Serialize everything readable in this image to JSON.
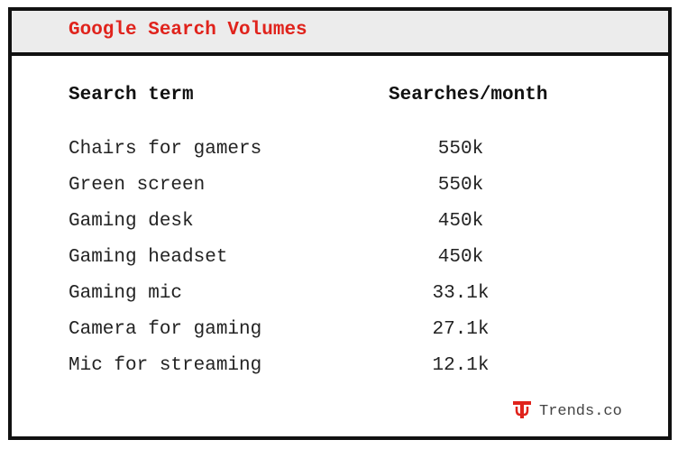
{
  "chart_data": {
    "type": "table",
    "title": "Google Search Volumes",
    "columns": [
      "Search term",
      "Searches/month"
    ],
    "rows": [
      {
        "term": "Chairs for gamers",
        "volume": "550k"
      },
      {
        "term": "Green screen",
        "volume": "550k"
      },
      {
        "term": "Gaming desk",
        "volume": "450k"
      },
      {
        "term": "Gaming headset",
        "volume": "450k"
      },
      {
        "term": "Gaming mic",
        "volume": "33.1k"
      },
      {
        "term": "Camera for gaming",
        "volume": "27.1k"
      },
      {
        "term": "Mic for streaming",
        "volume": "12.1k"
      }
    ]
  },
  "brand": {
    "name": "Trends.co",
    "icon": "trends-logo-icon",
    "color": "#e0231c"
  },
  "colors": {
    "title": "#e0231c",
    "text": "#222222",
    "header_bg": "#ececec",
    "border": "#111111"
  }
}
